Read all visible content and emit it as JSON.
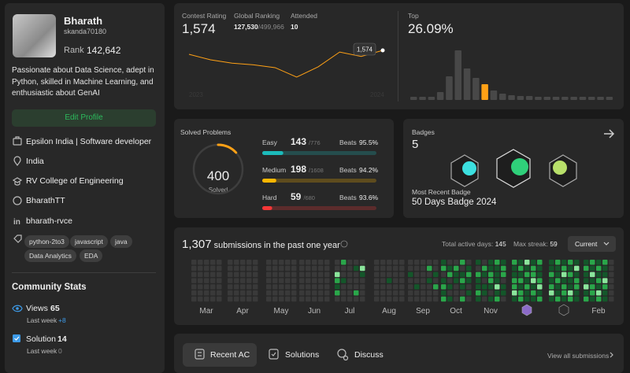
{
  "profile": {
    "name": "Bharath",
    "username": "skanda70180",
    "rank_label": "Rank",
    "rank": "142,642",
    "bio": "Passionate about Data Science, adept in Python, skilled in Machine Learning, and enthusiastic about GenAI",
    "edit_button": "Edit Profile",
    "info": [
      "Epsilon India | Software developer",
      "India",
      "RV College of Engineering",
      "BharathTT",
      "bharath-rvce"
    ],
    "tags": [
      "python-2to3",
      "javascript",
      "java",
      "Data Analytics",
      "EDA"
    ]
  },
  "community": {
    "title": "Community Stats",
    "items": [
      {
        "label": "Views",
        "value": "65",
        "sub_label": "Last week",
        "sub_value": "+8"
      },
      {
        "label": "Solution",
        "value": "14",
        "sub_label": "Last week",
        "sub_value": "0"
      }
    ]
  },
  "contest": {
    "rating_label": "Contest Rating",
    "rating": "1,574",
    "ranking_label": "Global Ranking",
    "ranking": "127,530",
    "ranking_total": "/499,966",
    "attended_label": "Attended",
    "attended": "10",
    "history": [
      1560,
      1540,
      1528,
      1522,
      1512,
      1478,
      1515,
      1568,
      1552,
      1574
    ],
    "tooltip": "1,574",
    "x_labels": [
      "2023",
      "2024"
    ],
    "top_label": "Top",
    "top": "26.09%",
    "distribution": [
      4,
      4,
      4,
      10,
      30,
      63,
      40,
      28,
      20,
      12,
      8,
      6,
      5,
      5,
      4,
      4,
      4,
      4,
      4,
      4,
      4,
      4,
      4
    ],
    "highlight": 8
  },
  "solved": {
    "title": "Solved Problems",
    "total": "400",
    "total_label": "Solved",
    "difficulties": [
      {
        "name": "Easy",
        "solved": 143,
        "total": {
          "value": 776,
          "label": "/776"
        },
        "beats_label": "Beats",
        "beats": "95.5%",
        "color": "#1cbaba"
      },
      {
        "name": "Medium",
        "solved": 198,
        "total": {
          "value": 1608,
          "label": "/1608"
        },
        "beats_label": "Beats",
        "beats": "94.2%",
        "color": "#ffb700"
      },
      {
        "name": "Hard",
        "solved": 59,
        "total": {
          "value": 680,
          "label": "/680"
        },
        "beats_label": "Beats",
        "beats": "93.6%",
        "color": "#f63737"
      }
    ]
  },
  "badges": {
    "title": "Badges",
    "count": "5",
    "recent_label": "Most Recent Badge",
    "recent": "50 Days Badge 2024"
  },
  "submissions": {
    "count": "1,307",
    "text": "submissions in the past one year",
    "active_label": "Total active days:",
    "active": "145",
    "streak_label": "Max streak:",
    "streak": "59",
    "dropdown": "Current",
    "months": [
      "Mar",
      "Apr",
      "May",
      "Jun",
      "Jul",
      "Aug",
      "Sep",
      "Oct",
      "Nov",
      null,
      null,
      "Feb"
    ],
    "levels": [
      [
        0,
        0,
        0,
        0,
        0,
        0,
        0,
        0,
        0,
        0,
        0,
        0,
        0,
        0,
        0,
        0,
        0,
        0,
        0,
        0,
        0,
        0,
        0,
        0,
        0,
        0,
        0,
        0,
        0,
        0,
        0,
        0,
        0,
        0,
        0
      ],
      [
        0,
        0,
        0,
        0,
        0,
        0,
        0,
        0,
        0,
        0,
        0,
        0,
        0,
        0,
        0,
        0,
        0,
        0,
        0,
        0,
        0,
        0,
        0,
        0,
        0,
        0,
        0,
        0,
        0,
        0,
        0,
        0,
        0,
        0,
        0
      ],
      [
        0,
        0,
        0,
        0,
        0,
        0,
        0,
        0,
        0,
        0,
        0,
        0,
        0,
        0,
        0,
        0,
        0,
        0,
        0,
        0,
        0,
        0,
        0,
        0,
        0,
        0,
        0,
        0,
        0,
        0,
        0,
        0,
        0,
        0,
        0
      ],
      [
        0,
        0,
        0,
        0,
        0,
        0,
        0,
        0,
        0,
        0,
        0,
        0,
        0,
        0,
        0,
        0,
        0,
        0,
        0,
        0,
        0,
        0,
        0,
        0,
        0,
        0,
        0,
        0,
        0,
        0,
        0,
        0,
        0,
        0,
        0
      ],
      [
        0,
        0,
        3,
        2,
        1,
        2,
        0,
        2,
        0,
        0,
        1,
        0,
        0,
        0,
        0,
        0,
        0,
        0,
        0,
        0,
        0,
        0,
        1,
        0,
        0,
        0,
        2,
        0,
        0,
        3,
        1,
        0,
        0,
        0,
        0
      ],
      [
        0,
        0,
        0,
        0,
        0,
        0,
        0,
        0,
        0,
        0,
        0,
        0,
        0,
        0,
        0,
        0,
        0,
        1,
        0,
        0,
        0,
        0,
        0,
        0,
        0,
        0,
        0,
        0,
        0,
        0,
        0,
        0,
        0,
        0,
        0
      ],
      [
        0,
        0,
        1,
        0,
        0,
        0,
        0,
        0,
        0,
        0,
        0,
        1,
        0,
        0,
        0,
        0,
        0,
        0,
        0,
        0,
        0,
        0,
        2,
        0,
        1,
        0,
        0,
        0,
        0,
        0,
        1,
        0,
        2,
        0,
        0
      ],
      [
        1,
        2,
        0,
        1,
        2,
        1,
        2,
        0,
        1,
        2,
        0,
        1,
        0,
        1,
        0,
        2,
        1,
        1,
        0,
        0,
        0,
        2,
        0,
        1,
        2,
        1,
        0,
        2,
        0,
        1,
        2,
        1,
        0,
        1,
        0
      ],
      [
        1,
        0,
        2,
        1,
        1,
        2,
        1,
        0,
        2,
        1,
        0,
        1,
        1,
        0,
        1,
        1,
        2,
        2,
        1,
        0,
        1,
        2,
        1,
        1,
        1,
        3,
        1,
        2,
        1,
        2,
        2,
        0,
        1,
        1,
        0
      ],
      [
        2,
        1,
        1,
        2,
        2,
        3,
        1,
        1,
        2,
        1,
        2,
        1,
        2,
        2,
        3,
        1,
        2,
        1,
        2,
        1,
        1,
        1,
        2,
        2,
        3,
        1,
        2,
        1,
        2,
        1,
        1,
        2,
        3,
        1,
        2
      ],
      [
        1,
        1,
        2,
        1,
        2,
        3,
        1,
        2,
        1,
        1,
        2,
        1,
        1,
        2,
        1,
        2,
        3,
        1,
        2,
        2,
        1,
        2,
        1,
        2,
        1,
        1,
        3,
        2,
        1,
        3,
        1,
        2,
        2,
        1,
        1
      ],
      [
        1,
        2,
        1,
        1,
        3,
        1,
        2,
        2,
        1,
        3,
        1,
        2,
        2,
        1,
        1,
        2,
        1,
        2,
        1,
        3,
        2,
        2,
        1,
        1,
        3,
        2,
        1,
        1,
        0,
        0,
        0,
        0,
        0,
        0,
        0
      ]
    ]
  },
  "tabs": {
    "items": [
      "Recent AC",
      "Solutions",
      "Discuss"
    ],
    "view_all": "View all submissions"
  }
}
